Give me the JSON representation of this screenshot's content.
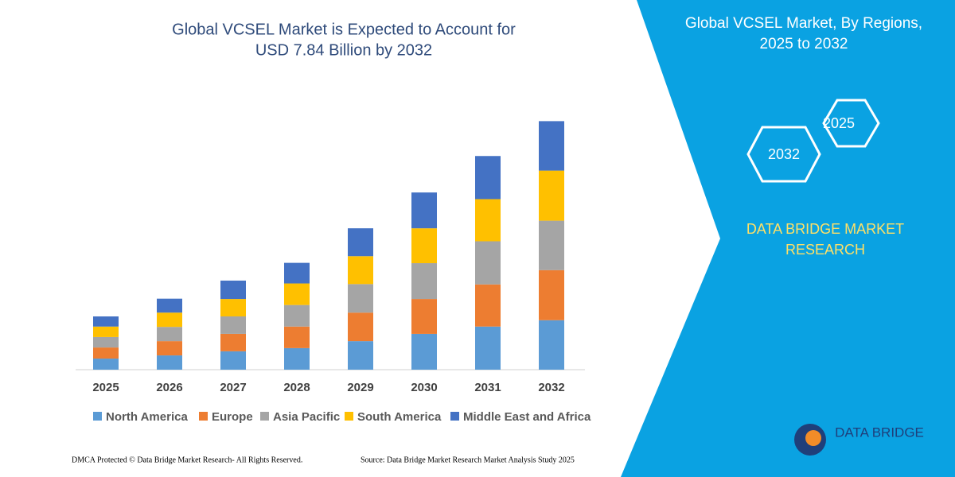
{
  "chart_data": {
    "type": "stacked_bar",
    "title": [
      "Global VCSEL Market is Expected to Account for",
      "USD 7.84 Billion by 2032"
    ],
    "categories": [
      "2025",
      "2026",
      "2027",
      "2028",
      "2029",
      "2030",
      "2031",
      "2032"
    ],
    "series": [
      {
        "name": "North America",
        "color": "#5b9bd5",
        "values": [
          0.35,
          0.45,
          0.58,
          0.68,
          0.9,
          1.13,
          1.36,
          1.56
        ]
      },
      {
        "name": "Europe",
        "color": "#ed7d31",
        "values": [
          0.35,
          0.45,
          0.55,
          0.68,
          0.9,
          1.1,
          1.33,
          1.58
        ]
      },
      {
        "name": "Asia Pacific",
        "color": "#a5a5a5",
        "values": [
          0.33,
          0.45,
          0.55,
          0.68,
          0.9,
          1.13,
          1.36,
          1.56
        ]
      },
      {
        "name": "South America",
        "color": "#ffc000",
        "values": [
          0.33,
          0.45,
          0.55,
          0.68,
          0.88,
          1.1,
          1.33,
          1.58
        ]
      },
      {
        "name": "Middle East and Africa",
        "color": "#4472c4",
        "values": [
          0.32,
          0.44,
          0.58,
          0.65,
          0.88,
          1.13,
          1.36,
          1.56
        ]
      }
    ],
    "ylim": [
      0,
      8
    ],
    "grid": false,
    "legend": "bottom"
  },
  "panel": {
    "title": [
      "Global VCSEL Market, By Regions,",
      "2025 to 2032"
    ],
    "hex_top": "2025",
    "hex_bottom": "2032",
    "brand": [
      "DATA BRIDGE MARKET",
      "RESEARCH"
    ],
    "logo": "DATA BRIDGE"
  },
  "footer": {
    "left": "DMCA Protected © Data Bridge Market Research- All Rights Reserved.",
    "right": "Source: Data Bridge Market Research Market Analysis Study 2025"
  }
}
